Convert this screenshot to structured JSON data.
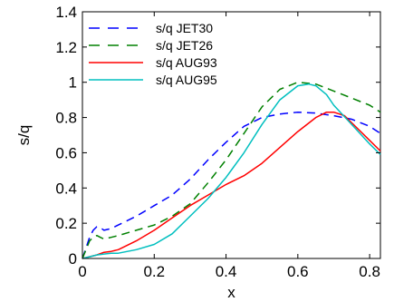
{
  "chart_data": {
    "type": "line",
    "title": "",
    "xlabel": "x",
    "ylabel": "s/q",
    "xlim": [
      0,
      0.83
    ],
    "ylim": [
      0,
      1.4
    ],
    "xticks": [
      0,
      0.2,
      0.4,
      0.6,
      0.8
    ],
    "xtick_labels": [
      "0",
      "0.2",
      "0.4",
      "0.6",
      "0.8"
    ],
    "yticks": [
      0,
      0.2,
      0.4,
      0.6,
      0.8,
      1,
      1.2,
      1.4
    ],
    "ytick_labels": [
      "0",
      "0.2",
      "0.4",
      "0.6",
      "0.8",
      "1",
      "1.2",
      "1.4"
    ],
    "grid": false,
    "legend_position": "top-left",
    "series": [
      {
        "name": "s/q JET30",
        "color": "#0000ff",
        "style": "dashed",
        "x": [
          0,
          0.01,
          0.02,
          0.03,
          0.04,
          0.05,
          0.06,
          0.08,
          0.1,
          0.15,
          0.2,
          0.25,
          0.3,
          0.35,
          0.4,
          0.45,
          0.5,
          0.55,
          0.6,
          0.65,
          0.7,
          0.75,
          0.8,
          0.83
        ],
        "y": [
          0,
          0.06,
          0.12,
          0.16,
          0.18,
          0.175,
          0.16,
          0.17,
          0.19,
          0.24,
          0.3,
          0.36,
          0.45,
          0.56,
          0.66,
          0.75,
          0.8,
          0.82,
          0.83,
          0.825,
          0.81,
          0.79,
          0.75,
          0.71
        ]
      },
      {
        "name": "s/q JET26",
        "color": "#008000",
        "style": "dashed",
        "x": [
          0,
          0.01,
          0.02,
          0.03,
          0.04,
          0.05,
          0.06,
          0.08,
          0.1,
          0.15,
          0.2,
          0.25,
          0.3,
          0.35,
          0.4,
          0.45,
          0.5,
          0.55,
          0.6,
          0.65,
          0.7,
          0.75,
          0.8,
          0.83
        ],
        "y": [
          0,
          0.05,
          0.1,
          0.12,
          0.13,
          0.12,
          0.11,
          0.12,
          0.13,
          0.16,
          0.19,
          0.24,
          0.31,
          0.43,
          0.56,
          0.71,
          0.86,
          0.96,
          1.0,
          0.99,
          0.95,
          0.91,
          0.87,
          0.83
        ]
      },
      {
        "name": "s/q AUG93",
        "color": "#ff0000",
        "style": "solid",
        "x": [
          0,
          0.02,
          0.04,
          0.06,
          0.08,
          0.1,
          0.15,
          0.2,
          0.25,
          0.3,
          0.35,
          0.4,
          0.45,
          0.5,
          0.55,
          0.6,
          0.65,
          0.68,
          0.7,
          0.73,
          0.75,
          0.8,
          0.83
        ],
        "y": [
          0,
          0.01,
          0.02,
          0.035,
          0.04,
          0.05,
          0.1,
          0.16,
          0.23,
          0.3,
          0.36,
          0.42,
          0.47,
          0.54,
          0.63,
          0.72,
          0.8,
          0.83,
          0.83,
          0.81,
          0.77,
          0.67,
          0.61
        ]
      },
      {
        "name": "s/q AUG95",
        "color": "#00bfbf",
        "style": "solid",
        "x": [
          0,
          0.02,
          0.04,
          0.06,
          0.08,
          0.1,
          0.15,
          0.2,
          0.25,
          0.3,
          0.35,
          0.4,
          0.45,
          0.5,
          0.55,
          0.6,
          0.63,
          0.65,
          0.68,
          0.7,
          0.75,
          0.8,
          0.83
        ],
        "y": [
          0,
          0.01,
          0.02,
          0.025,
          0.03,
          0.03,
          0.05,
          0.08,
          0.14,
          0.24,
          0.34,
          0.46,
          0.6,
          0.76,
          0.9,
          0.98,
          0.99,
          0.98,
          0.93,
          0.87,
          0.76,
          0.65,
          0.59
        ]
      }
    ]
  }
}
